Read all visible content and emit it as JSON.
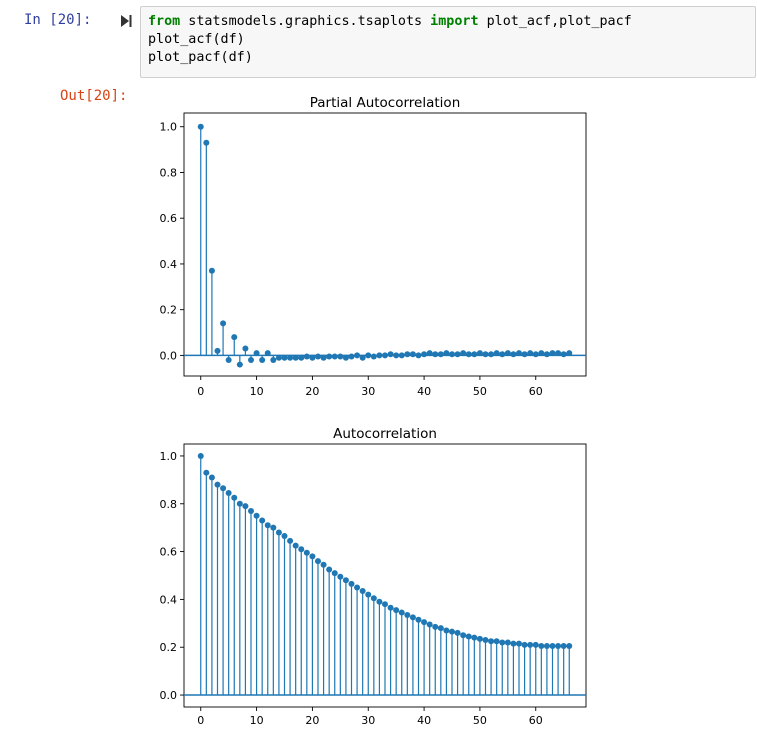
{
  "cell": {
    "in_prompt": "In [20]:",
    "out_prompt": "Out[20]:",
    "code": {
      "line1": {
        "kw1": "from",
        "module": " statsmodels.graphics.tsaplots ",
        "kw2": "import",
        "names": " plot_acf,plot_pacf"
      },
      "line2": "plot_acf(df)",
      "line3": "plot_pacf(df)"
    }
  },
  "icons": {
    "run": "run-cell-icon"
  },
  "colors": {
    "stem": "#1f77b4",
    "axis": "#000000",
    "in_prompt": "#303f9f",
    "out_prompt": "#d84315",
    "keyword": "#008000"
  },
  "chart_data": [
    {
      "type": "stem",
      "title": "Partial Autocorrelation",
      "xlabel": "",
      "ylabel": "",
      "xlim": [
        -3,
        69
      ],
      "ylim": [
        -0.09,
        1.06
      ],
      "xticks": [
        0,
        10,
        20,
        30,
        40,
        50,
        60
      ],
      "yticks": [
        0.0,
        0.2,
        0.4,
        0.6,
        0.8,
        1.0
      ],
      "ytick_labels": [
        "0.0",
        "0.2",
        "0.4",
        "0.6",
        "0.8",
        "1.0"
      ],
      "lags": [
        0,
        1,
        2,
        3,
        4,
        5,
        6,
        7,
        8,
        9,
        10,
        11,
        12,
        13,
        14,
        15,
        16,
        17,
        18,
        19,
        20,
        21,
        22,
        23,
        24,
        25,
        26,
        27,
        28,
        29,
        30,
        31,
        32,
        33,
        34,
        35,
        36,
        37,
        38,
        39,
        40,
        41,
        42,
        43,
        44,
        45,
        46,
        47,
        48,
        49,
        50,
        51,
        52,
        53,
        54,
        55,
        56,
        57,
        58,
        59,
        60,
        61,
        62,
        63,
        64,
        65,
        66
      ],
      "values": [
        1.0,
        0.93,
        0.37,
        0.02,
        0.14,
        -0.02,
        0.08,
        -0.04,
        0.03,
        -0.02,
        0.01,
        -0.02,
        0.01,
        -0.02,
        -0.01,
        -0.01,
        -0.01,
        -0.01,
        -0.01,
        -0.005,
        -0.01,
        -0.005,
        -0.01,
        -0.005,
        -0.005,
        -0.005,
        -0.01,
        -0.005,
        0.0,
        -0.01,
        0.0,
        -0.005,
        0.0,
        0.0,
        0.005,
        0.0,
        0.0,
        0.005,
        0.005,
        0.0,
        0.005,
        0.01,
        0.005,
        0.005,
        0.01,
        0.005,
        0.005,
        0.01,
        0.005,
        0.005,
        0.01,
        0.005,
        0.005,
        0.01,
        0.005,
        0.01,
        0.005,
        0.01,
        0.005,
        0.01,
        0.005,
        0.01,
        0.005,
        0.01,
        0.01,
        0.005,
        0.01
      ],
      "grid": false,
      "legend": "none"
    },
    {
      "type": "stem",
      "title": "Autocorrelation",
      "xlabel": "",
      "ylabel": "",
      "xlim": [
        -3,
        69
      ],
      "ylim": [
        -0.05,
        1.05
      ],
      "xticks": [
        0,
        10,
        20,
        30,
        40,
        50,
        60
      ],
      "yticks": [
        0.0,
        0.2,
        0.4,
        0.6,
        0.8,
        1.0
      ],
      "ytick_labels": [
        "0.0",
        "0.2",
        "0.4",
        "0.6",
        "0.8",
        "1.0"
      ],
      "lags": [
        0,
        1,
        2,
        3,
        4,
        5,
        6,
        7,
        8,
        9,
        10,
        11,
        12,
        13,
        14,
        15,
        16,
        17,
        18,
        19,
        20,
        21,
        22,
        23,
        24,
        25,
        26,
        27,
        28,
        29,
        30,
        31,
        32,
        33,
        34,
        35,
        36,
        37,
        38,
        39,
        40,
        41,
        42,
        43,
        44,
        45,
        46,
        47,
        48,
        49,
        50,
        51,
        52,
        53,
        54,
        55,
        56,
        57,
        58,
        59,
        60,
        61,
        62,
        63,
        64,
        65,
        66
      ],
      "values": [
        1.0,
        0.93,
        0.91,
        0.88,
        0.865,
        0.845,
        0.825,
        0.8,
        0.79,
        0.77,
        0.75,
        0.73,
        0.71,
        0.7,
        0.68,
        0.665,
        0.645,
        0.625,
        0.61,
        0.595,
        0.58,
        0.56,
        0.545,
        0.525,
        0.51,
        0.495,
        0.48,
        0.465,
        0.45,
        0.435,
        0.42,
        0.405,
        0.39,
        0.38,
        0.365,
        0.355,
        0.345,
        0.335,
        0.325,
        0.315,
        0.305,
        0.295,
        0.285,
        0.28,
        0.27,
        0.265,
        0.26,
        0.25,
        0.245,
        0.24,
        0.235,
        0.23,
        0.225,
        0.225,
        0.22,
        0.22,
        0.215,
        0.215,
        0.21,
        0.21,
        0.21,
        0.205,
        0.205,
        0.205,
        0.205,
        0.205,
        0.205
      ],
      "grid": false,
      "legend": "none"
    }
  ]
}
